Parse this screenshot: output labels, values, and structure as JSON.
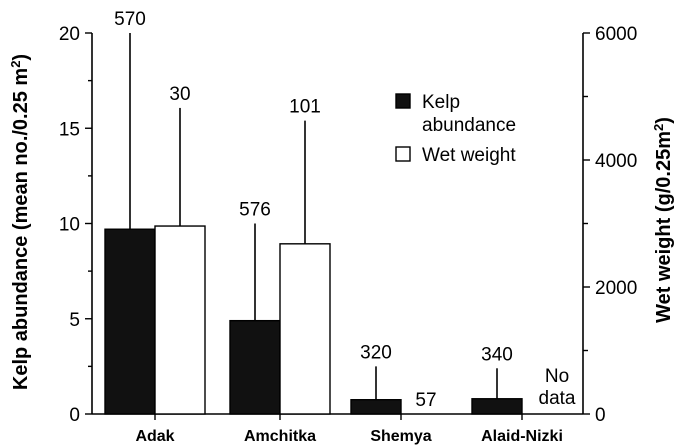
{
  "chart_data": {
    "type": "bar",
    "categories": [
      "Adak",
      "Amchitka",
      "Shemya",
      "Alaid-Nizki"
    ],
    "left_axis": {
      "label_main": "Kelp abundance (mean no./0.25 m",
      "label_sup": "2",
      "label_end": ")",
      "ylim": [
        0,
        20
      ],
      "ticks": [
        0,
        5,
        10,
        15,
        20
      ]
    },
    "right_axis": {
      "label_main": "Wet weight (g/0.25m",
      "label_sup": "2",
      "label_end": ")",
      "ylim": [
        0,
        6000
      ],
      "ticks": [
        0,
        2000,
        4000,
        6000
      ]
    },
    "series": [
      {
        "name": "Kelp abundance",
        "axis": "left",
        "color": "#111111",
        "values": [
          9.7,
          4.9,
          0.75,
          0.8
        ],
        "error_tops": [
          20,
          10,
          2.5,
          2.4
        ],
        "n_labels": [
          "570",
          "576",
          "320",
          "340"
        ]
      },
      {
        "name": "Wet weight",
        "axis": "right",
        "color": "#ffffff",
        "values": [
          2960,
          2680,
          null,
          null
        ],
        "error_tops": [
          4820,
          4620,
          null,
          null
        ],
        "n_labels": [
          "30",
          "101",
          "57",
          ""
        ]
      }
    ],
    "legend": {
      "position": "top-right",
      "items": [
        {
          "label_lines": [
            "Kelp",
            "abundance"
          ],
          "color": "#111111"
        },
        {
          "label_lines": [
            "Wet weight"
          ],
          "color": "#ffffff"
        }
      ]
    },
    "annotations": [
      {
        "category": "Alaid-Nizki",
        "lines": [
          "No",
          "data"
        ]
      }
    ],
    "grid": false
  }
}
